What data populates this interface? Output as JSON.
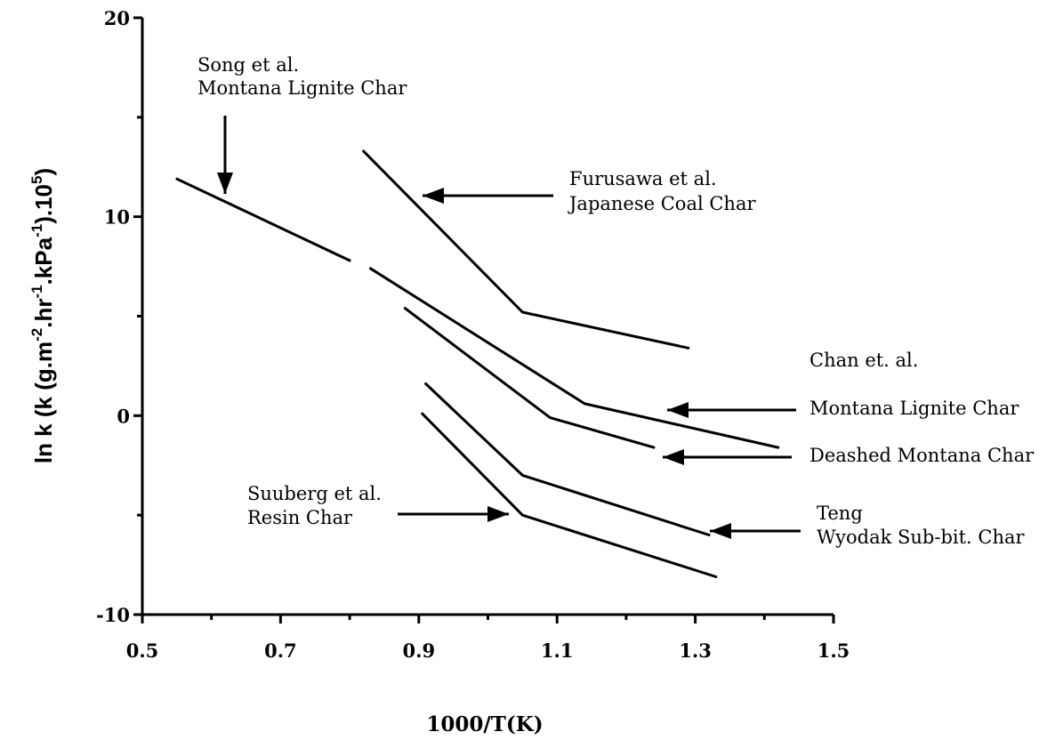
{
  "chart_data": {
    "type": "line",
    "xlabel": "1000/T(K)",
    "ylabel_parts": [
      "ln k (k (g.m",
      "-2",
      ".hr",
      "-1",
      ".kPa",
      "-1",
      ").10",
      "5",
      ")"
    ],
    "xlim": [
      0.5,
      1.5
    ],
    "ylim": [
      -10,
      20
    ],
    "xticks": [
      "0.5",
      "0.7",
      "0.9",
      "1.1",
      "1.3",
      "1.5"
    ],
    "yticks": [
      "20",
      "10",
      "0",
      "-10"
    ],
    "grid": false,
    "series": [
      {
        "key": "song",
        "x": [
          0.55,
          0.8
        ],
        "y": [
          11.9,
          7.8
        ]
      },
      {
        "key": "furusawa",
        "x": [
          0.82,
          1.05,
          1.29
        ],
        "y": [
          13.3,
          5.2,
          3.4
        ]
      },
      {
        "key": "chan_montana",
        "x": [
          0.83,
          1.14,
          1.42
        ],
        "y": [
          7.4,
          0.6,
          -1.6
        ]
      },
      {
        "key": "chan_deashed",
        "x": [
          0.88,
          1.09,
          1.24
        ],
        "y": [
          5.4,
          -0.1,
          -1.6
        ]
      },
      {
        "key": "teng",
        "x": [
          0.91,
          1.05,
          1.32
        ],
        "y": [
          1.6,
          -3.0,
          -6.0
        ]
      },
      {
        "key": "suuberg",
        "x": [
          0.905,
          1.05,
          1.33
        ],
        "y": [
          0.1,
          -5.0,
          -8.1
        ]
      }
    ],
    "annotations": [
      {
        "key": "song",
        "lines": [
          "Song et al.",
          "Montana Lignite Char"
        ]
      },
      {
        "key": "furusawa",
        "lines": [
          "Furusawa et al.",
          "Japanese Coal Char"
        ]
      },
      {
        "key": "chan",
        "lines": [
          "Chan et. al."
        ]
      },
      {
        "key": "chan_montana",
        "lines": [
          "Montana Lignite Char"
        ]
      },
      {
        "key": "chan_deashed",
        "lines": [
          "Deashed Montana Char"
        ]
      },
      {
        "key": "suuberg",
        "lines": [
          "Suuberg et al.",
          "Resin Char"
        ]
      },
      {
        "key": "teng",
        "lines": [
          "Teng",
          "Wyodak Sub-bit. Char"
        ]
      }
    ]
  }
}
